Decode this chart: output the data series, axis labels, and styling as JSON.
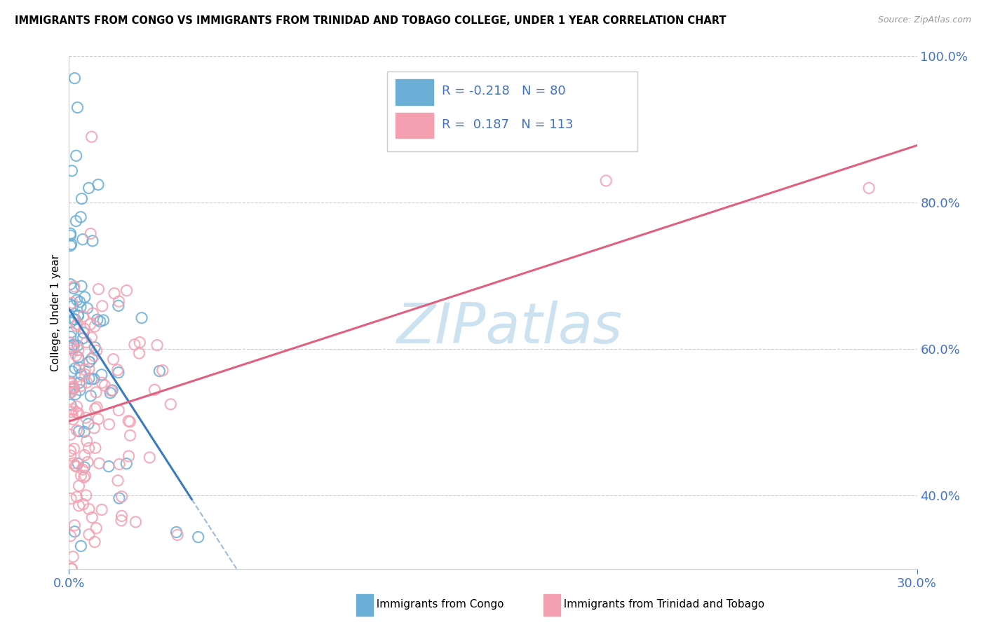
{
  "title": "IMMIGRANTS FROM CONGO VS IMMIGRANTS FROM TRINIDAD AND TOBAGO COLLEGE, UNDER 1 YEAR CORRELATION CHART",
  "source": "Source: ZipAtlas.com",
  "ylabel_label": "College, Under 1 year",
  "legend_label1": "Immigrants from Congo",
  "legend_label2": "Immigrants from Trinidad and Tobago",
  "r1": -0.218,
  "n1": 80,
  "r2": 0.187,
  "n2": 113,
  "color1": "#6baed6",
  "color2": "#f4a0b0",
  "line_color1": "#3a7abf",
  "line_color2": "#e06080",
  "xlim": [
    0.0,
    0.3
  ],
  "ylim": [
    0.3,
    1.0
  ],
  "yticks": [
    0.4,
    0.6,
    0.8,
    1.0
  ],
  "ytick_labels": [
    "40.0%",
    "60.0%",
    "80.0%",
    "100.0%"
  ],
  "xtick_left": "0.0%",
  "xtick_right": "30.0%"
}
